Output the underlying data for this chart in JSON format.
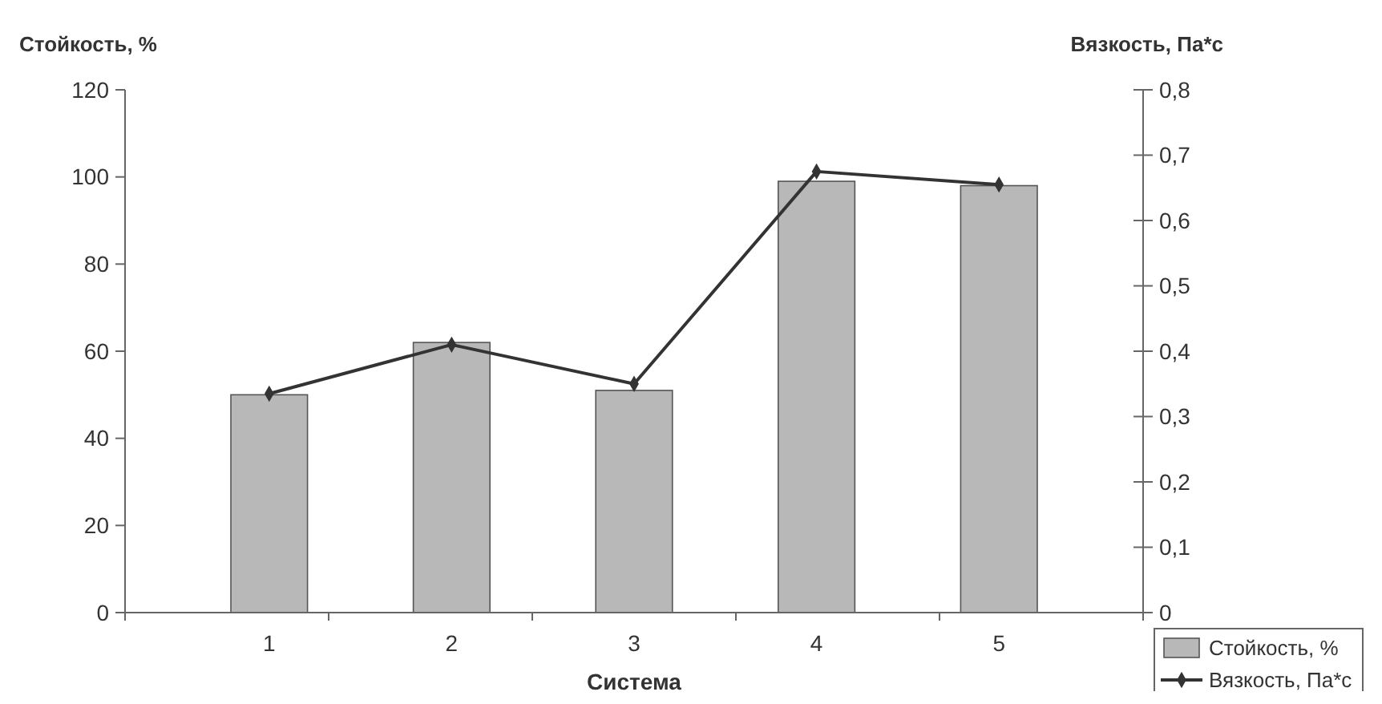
{
  "chart_data": {
    "type": "bar",
    "categories": [
      "1",
      "2",
      "3",
      "4",
      "5"
    ],
    "xlabel": "Система",
    "ylabel": "Стойкость, %",
    "y2label": "Вязкость, Па*с",
    "series": [
      {
        "name": "Стойкость, %",
        "color": "#b8b8b8",
        "values": [
          50,
          62,
          51,
          99,
          98
        ]
      },
      {
        "name": "Вязкость, Па*с",
        "type": "line",
        "axis": "y2",
        "color": "#333333",
        "marker": "diamond",
        "values": [
          0.335,
          0.41,
          0.35,
          0.675,
          0.655
        ]
      }
    ],
    "ylim": [
      0,
      120
    ],
    "yticks": [
      0,
      20,
      40,
      60,
      80,
      100,
      120
    ],
    "y2lim": [
      0,
      0.8
    ],
    "y2ticks": [
      0,
      {
        "value": 0.1,
        "label": "0,1"
      },
      {
        "value": 0.2,
        "label": "0,2"
      },
      {
        "value": 0.3,
        "label": "0,3"
      },
      {
        "value": 0.4,
        "label": "0,4"
      },
      {
        "value": 0.5,
        "label": "0,5"
      },
      {
        "value": 0.6,
        "label": "0,6"
      },
      {
        "value": 0.7,
        "label": "0,7"
      },
      {
        "value": 0.8,
        "label": "0,8"
      }
    ],
    "legend": "bottom right",
    "grid": false
  }
}
